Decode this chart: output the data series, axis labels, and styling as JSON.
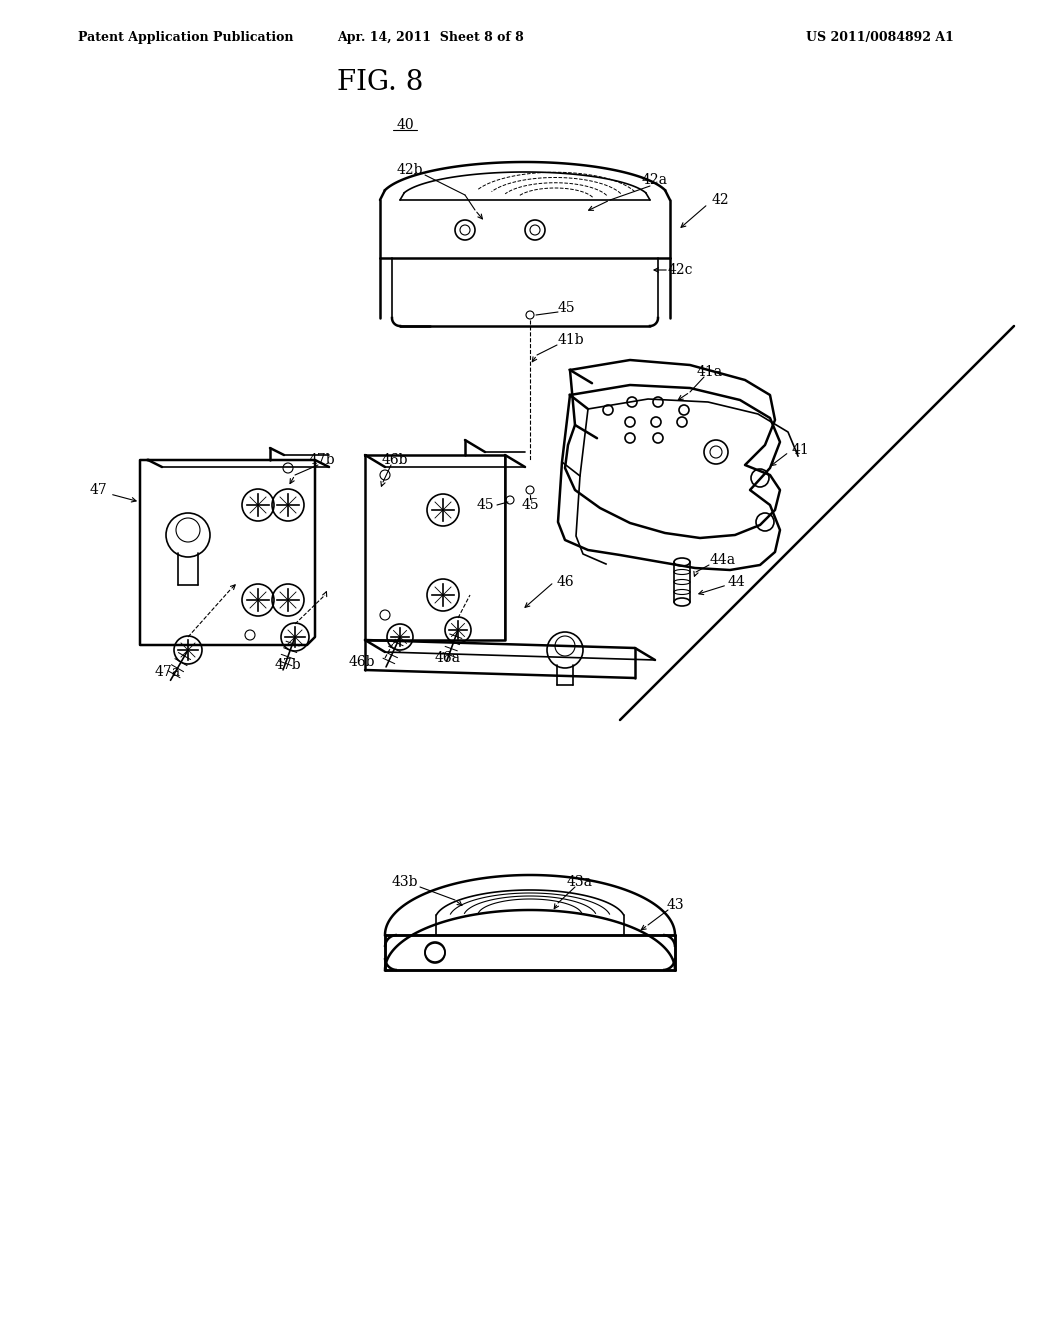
{
  "background_color": "#ffffff",
  "header_left": "Patent Application Publication",
  "header_center": "Apr. 14, 2011  Sheet 8 of 8",
  "header_right": "US 2011/0084892 A1",
  "fig_title": "FIG. 8",
  "line_color": "#000000",
  "lw_thick": 1.8,
  "lw_med": 1.2,
  "lw_thin": 0.8
}
